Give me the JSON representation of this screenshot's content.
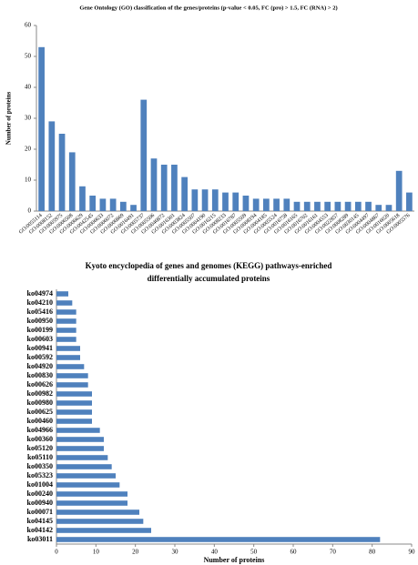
{
  "chart_data": [
    {
      "type": "bar",
      "title": "Gene Ontology (GO) classification of the genes/proteins  (p-value < 0.05, FC (pro) > 1.5, FC (RNA) > 2)",
      "ylabel": "Number of proteins",
      "categories": [
        "GO:0055114",
        "GO:0008152",
        "GO:0005975",
        "GO:0006508",
        "GO:0006629",
        "GO:0042545",
        "GO:0006633",
        "GO:0006072",
        "GO:0006869",
        "GO:0016491",
        "GO:0005737",
        "GO:0005506",
        "GO:0046872",
        "GO:0016301",
        "GO:0003824",
        "GO:0005507",
        "GO:0004190",
        "GO:0016215",
        "GO:0008233",
        "GO:0016787",
        "GO:0005509",
        "GO:0008194",
        "GO:0004185",
        "GO:0005524",
        "GO:0016758",
        "GO:0016165",
        "GO:0016702",
        "GO:0016161",
        "GO:0004553",
        "GO:0022857",
        "GO:0008289",
        "GO:0030145",
        "GO:0004497",
        "GO:0004867",
        "GO:0016020",
        "GO:0005618",
        "GO:0005576"
      ],
      "values": [
        53,
        29,
        25,
        19,
        8,
        5,
        4,
        4,
        3,
        2,
        36,
        17,
        15,
        15,
        11,
        7,
        7,
        7,
        6,
        6,
        5,
        4,
        4,
        4,
        4,
        3,
        3,
        3,
        3,
        3,
        3,
        3,
        3,
        2,
        2,
        13,
        6
      ],
      "color": "#4f81bd",
      "ylim": [
        0,
        60
      ],
      "yticks": [
        0,
        10,
        20,
        30,
        40,
        50,
        60
      ]
    },
    {
      "type": "barh",
      "title": [
        "Kyoto encyclopedia of genes and genomes  (KEGG) pathways-enriched",
        "differentially accumulated proteins"
      ],
      "xlabel": "Number of proteins",
      "categories": [
        "ko04974",
        "ko04210",
        "ko05416",
        "ko00950",
        "ko00199",
        "ko00603",
        "ko00941",
        "ko00592",
        "ko04920",
        "ko00830",
        "ko00626",
        "ko00982",
        "ko00980",
        "ko00625",
        "ko00460",
        "ko04966",
        "ko00360",
        "ko05120",
        "ko05110",
        "ko00350",
        "ko05323",
        "ko01004",
        "ko00240",
        "ko00940",
        "ko00071",
        "ko04145",
        "ko04142",
        "ko03011"
      ],
      "values": [
        3,
        4,
        5,
        5,
        5,
        5,
        6,
        6,
        7,
        8,
        8,
        9,
        9,
        9,
        9,
        11,
        12,
        12,
        13,
        14,
        15,
        16,
        18,
        18,
        21,
        22,
        24,
        82
      ],
      "color": "#4f81bd",
      "xlim": [
        0,
        90
      ],
      "xticks": [
        0,
        10,
        20,
        30,
        40,
        50,
        60,
        70,
        80,
        90
      ]
    }
  ]
}
